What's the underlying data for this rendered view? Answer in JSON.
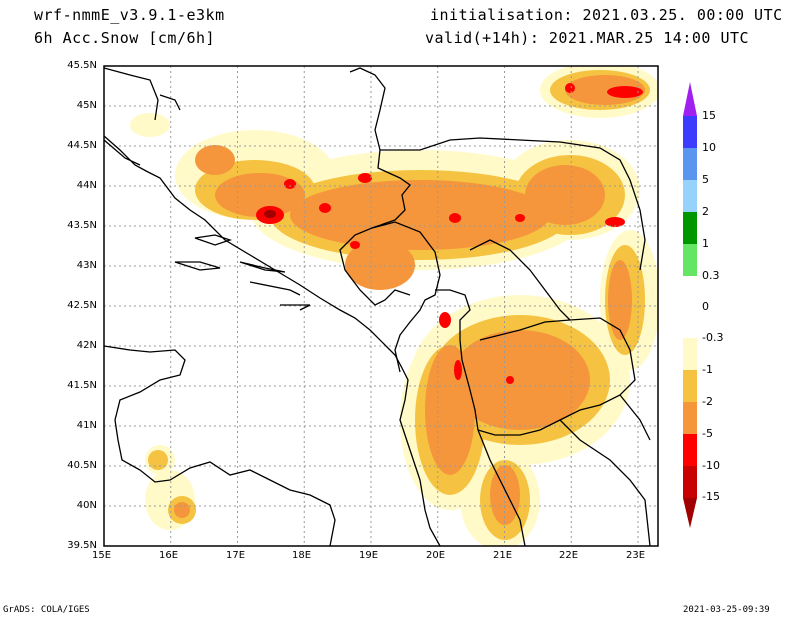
{
  "header": {
    "model": "wrf-nmmE_v3.9.1-e3km",
    "field": "6h Acc.Snow [cm/6h]",
    "initialisation": "initialisation: 2021.03.25.  00:00 UTC",
    "valid": "valid(+14h): 2021.MAR.25 14:00 UTC"
  },
  "map": {
    "lat_labels": [
      "45.5N",
      "45N",
      "44.5N",
      "44N",
      "43.5N",
      "43N",
      "42.5N",
      "42N",
      "41.5N",
      "41N",
      "40.5N",
      "40N",
      "39.5N"
    ],
    "lon_labels": [
      "15E",
      "16E",
      "17E",
      "18E",
      "19E",
      "20E",
      "21E",
      "22E",
      "23E"
    ],
    "lon_range": [
      15,
      23.3
    ],
    "lat_range": [
      39.5,
      45.5
    ],
    "grid": true
  },
  "colorbar": {
    "levels": [
      "15",
      "10",
      "5",
      "2",
      "1",
      "0.3",
      "0",
      "-0.3",
      "-1",
      "-2",
      "-5",
      "-10",
      "-15"
    ],
    "colors": [
      "#a020f0",
      "#3c3cff",
      "#5a96f0",
      "#96d2fa",
      "#009600",
      "#64e664",
      "#ffffff",
      "#fffac8",
      "#f5c341",
      "#f5963c",
      "#ff0000",
      "#c80000",
      "#a00000"
    ]
  },
  "footer": {
    "left": "GrADS: COLA/IGES",
    "right": "2021-03-25-09:39"
  }
}
